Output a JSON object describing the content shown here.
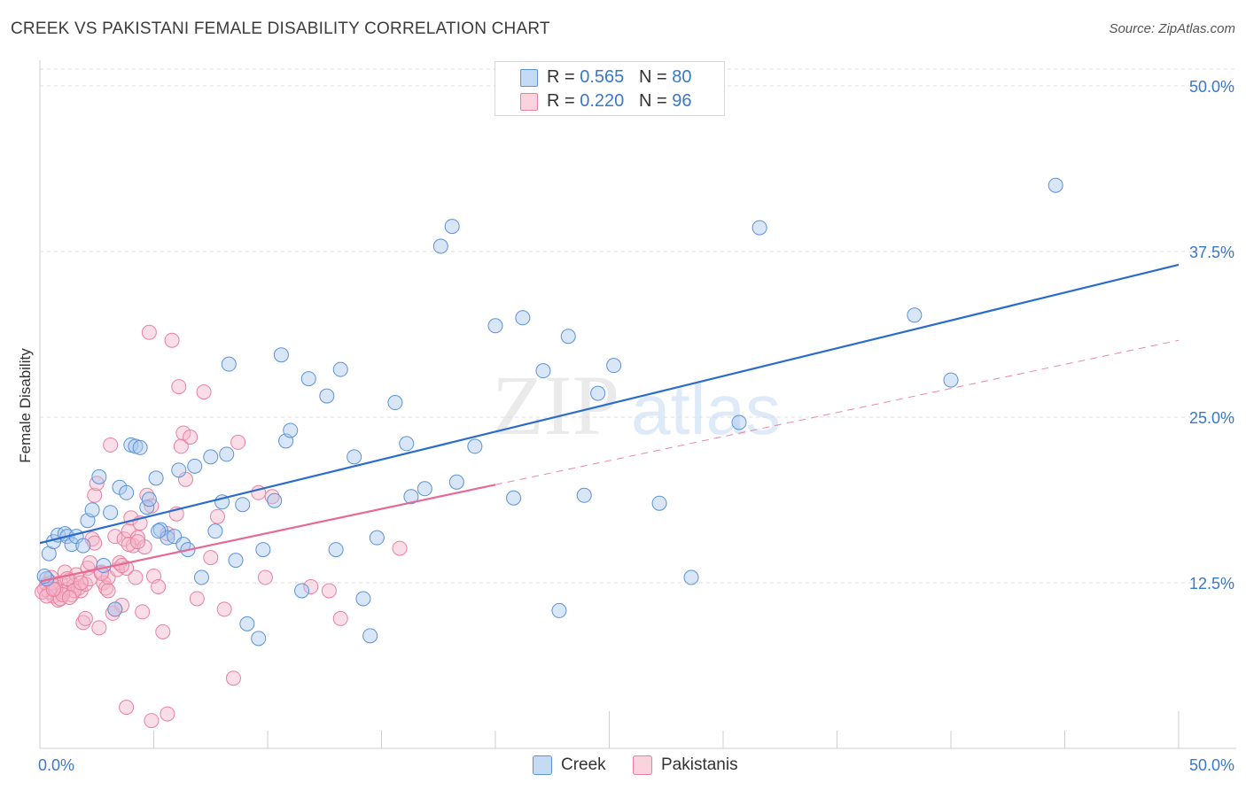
{
  "header": {
    "title": "CREEK VS PAKISTANI FEMALE DISABILITY CORRELATION CHART",
    "source": "Source: ZipAtlas.com"
  },
  "colors": {
    "creek_fill": "#a9c8ee",
    "creek_stroke": "#5b93d8",
    "creek_line": "#2a6dc9",
    "pakistani_fill": "#f5b5c9",
    "pakistani_stroke": "#ec7fa0",
    "pakistani_line": "#e66a94",
    "axis_value": "#3a78c9",
    "grid": "#dddddd"
  },
  "legend_top": [
    {
      "r_label": "R =",
      "r_value": "0.565",
      "n_label": "N =",
      "n_value": "80"
    },
    {
      "r_label": "R =",
      "r_value": "0.220",
      "n_label": "N =",
      "n_value": "96"
    }
  ],
  "watermark": {
    "zip": "ZIP",
    "atlas": "atlas"
  },
  "chart_data": {
    "type": "scatter",
    "title": "CREEK VS PAKISTANI FEMALE DISABILITY CORRELATION CHART",
    "ylabel": "Female Disability",
    "xlabel": "",
    "xlim": [
      0,
      50
    ],
    "ylim": [
      0,
      50
    ],
    "x_tick_labels": [
      "0.0%",
      "50.0%"
    ],
    "y_ticks": [
      12.5,
      25.0,
      37.5,
      50.0
    ],
    "y_tick_labels": [
      "12.5%",
      "25.0%",
      "37.5%",
      "50.0%"
    ],
    "grid": true,
    "legend_position": "bottom",
    "series": [
      {
        "name": "Creek",
        "trend": {
          "x0": 0,
          "y0": 15.5,
          "x1": 50,
          "y1": 36.5
        },
        "points": [
          [
            0.3,
            12.8
          ],
          [
            0.4,
            14.7
          ],
          [
            0.6,
            15.6
          ],
          [
            0.8,
            16.1
          ],
          [
            1.1,
            16.2
          ],
          [
            1.2,
            16.0
          ],
          [
            1.4,
            15.4
          ],
          [
            1.6,
            16.0
          ],
          [
            1.9,
            15.3
          ],
          [
            2.1,
            17.2
          ],
          [
            2.3,
            18.0
          ],
          [
            2.6,
            20.5
          ],
          [
            2.8,
            13.8
          ],
          [
            3.1,
            17.8
          ],
          [
            3.3,
            10.5
          ],
          [
            3.5,
            19.7
          ],
          [
            3.8,
            19.3
          ],
          [
            4.0,
            22.9
          ],
          [
            4.2,
            22.8
          ],
          [
            4.4,
            22.7
          ],
          [
            4.7,
            18.2
          ],
          [
            4.8,
            18.8
          ],
          [
            5.1,
            20.4
          ],
          [
            5.3,
            16.5
          ],
          [
            5.6,
            15.9
          ],
          [
            5.9,
            16.0
          ],
          [
            6.1,
            21.0
          ],
          [
            6.3,
            15.4
          ],
          [
            6.5,
            15.0
          ],
          [
            6.8,
            21.3
          ],
          [
            7.1,
            12.9
          ],
          [
            7.5,
            22.0
          ],
          [
            7.7,
            16.4
          ],
          [
            8.0,
            18.6
          ],
          [
            8.2,
            22.2
          ],
          [
            8.3,
            29.0
          ],
          [
            8.6,
            14.2
          ],
          [
            8.9,
            18.4
          ],
          [
            9.1,
            9.4
          ],
          [
            9.6,
            8.3
          ],
          [
            9.8,
            15.0
          ],
          [
            10.3,
            18.7
          ],
          [
            10.6,
            29.7
          ],
          [
            10.8,
            23.2
          ],
          [
            11.0,
            24.0
          ],
          [
            11.5,
            11.9
          ],
          [
            11.8,
            27.9
          ],
          [
            12.6,
            26.6
          ],
          [
            13.0,
            15.0
          ],
          [
            13.2,
            28.6
          ],
          [
            13.8,
            22.0
          ],
          [
            14.2,
            11.3
          ],
          [
            14.5,
            8.5
          ],
          [
            14.8,
            15.9
          ],
          [
            15.6,
            26.1
          ],
          [
            16.1,
            23.0
          ],
          [
            16.3,
            19.0
          ],
          [
            16.9,
            19.6
          ],
          [
            17.6,
            37.9
          ],
          [
            18.1,
            39.4
          ],
          [
            18.3,
            20.1
          ],
          [
            19.1,
            22.8
          ],
          [
            20.0,
            31.9
          ],
          [
            20.8,
            18.9
          ],
          [
            21.2,
            32.5
          ],
          [
            22.1,
            28.5
          ],
          [
            22.8,
            10.4
          ],
          [
            23.2,
            31.1
          ],
          [
            23.9,
            19.1
          ],
          [
            24.5,
            26.8
          ],
          [
            25.2,
            28.9
          ],
          [
            27.2,
            18.5
          ],
          [
            28.6,
            12.9
          ],
          [
            30.7,
            24.6
          ],
          [
            31.6,
            39.3
          ],
          [
            38.4,
            32.7
          ],
          [
            40.0,
            27.8
          ],
          [
            44.6,
            42.5
          ],
          [
            0.2,
            13.0
          ],
          [
            5.2,
            16.4
          ]
        ]
      },
      {
        "name": "Pakistanis",
        "trend": {
          "x0": 0,
          "y0": 12.6,
          "x1": 20,
          "y1": 19.9
        },
        "trend_extension": {
          "x0": 20,
          "y0": 19.9,
          "x1": 50,
          "y1": 30.8
        },
        "points": [
          [
            0.2,
            12.0
          ],
          [
            0.3,
            12.4
          ],
          [
            0.4,
            11.8
          ],
          [
            0.5,
            12.9
          ],
          [
            0.6,
            11.5
          ],
          [
            0.7,
            12.2
          ],
          [
            0.8,
            11.2
          ],
          [
            0.9,
            12.5
          ],
          [
            1.0,
            11.8
          ],
          [
            1.1,
            13.3
          ],
          [
            1.2,
            12.0
          ],
          [
            1.3,
            12.7
          ],
          [
            1.4,
            11.6
          ],
          [
            1.5,
            12.3
          ],
          [
            1.6,
            13.1
          ],
          [
            1.7,
            12.1
          ],
          [
            1.8,
            11.9
          ],
          [
            1.9,
            9.5
          ],
          [
            2.0,
            12.4
          ],
          [
            2.1,
            13.6
          ],
          [
            2.2,
            12.8
          ],
          [
            2.3,
            15.8
          ],
          [
            2.4,
            19.1
          ],
          [
            2.5,
            20.0
          ],
          [
            2.6,
            9.1
          ],
          [
            2.7,
            13.3
          ],
          [
            2.8,
            12.5
          ],
          [
            2.9,
            12.1
          ],
          [
            3.0,
            12.9
          ],
          [
            3.1,
            22.9
          ],
          [
            3.2,
            10.2
          ],
          [
            3.3,
            16.0
          ],
          [
            3.4,
            13.5
          ],
          [
            3.5,
            14.0
          ],
          [
            3.6,
            10.8
          ],
          [
            3.7,
            15.8
          ],
          [
            3.8,
            13.6
          ],
          [
            3.9,
            16.4
          ],
          [
            4.0,
            17.4
          ],
          [
            4.1,
            15.3
          ],
          [
            4.2,
            12.9
          ],
          [
            4.3,
            15.9
          ],
          [
            4.4,
            17.0
          ],
          [
            4.5,
            10.3
          ],
          [
            4.6,
            15.2
          ],
          [
            4.7,
            19.1
          ],
          [
            4.8,
            31.4
          ],
          [
            4.9,
            18.3
          ],
          [
            5.0,
            13.0
          ],
          [
            5.2,
            12.2
          ],
          [
            5.4,
            8.8
          ],
          [
            5.6,
            16.2
          ],
          [
            5.8,
            30.8
          ],
          [
            6.0,
            17.7
          ],
          [
            6.1,
            27.3
          ],
          [
            6.2,
            22.8
          ],
          [
            6.3,
            23.8
          ],
          [
            6.4,
            20.3
          ],
          [
            6.6,
            23.5
          ],
          [
            6.9,
            11.3
          ],
          [
            7.2,
            26.9
          ],
          [
            7.5,
            14.4
          ],
          [
            7.8,
            17.5
          ],
          [
            8.1,
            10.5
          ],
          [
            8.5,
            5.3
          ],
          [
            8.7,
            23.1
          ],
          [
            9.6,
            19.3
          ],
          [
            9.9,
            12.9
          ],
          [
            10.2,
            19.0
          ],
          [
            11.9,
            12.2
          ],
          [
            12.7,
            11.9
          ],
          [
            13.2,
            9.8
          ],
          [
            15.8,
            15.1
          ],
          [
            3.8,
            3.1
          ],
          [
            4.9,
            2.1
          ],
          [
            5.6,
            2.6
          ],
          [
            0.1,
            11.8
          ],
          [
            0.3,
            11.5
          ],
          [
            0.5,
            12.5
          ],
          [
            0.7,
            12.0
          ],
          [
            0.9,
            11.3
          ],
          [
            1.2,
            12.8
          ],
          [
            1.5,
            11.9
          ],
          [
            1.8,
            12.5
          ],
          [
            2.2,
            14.0
          ],
          [
            2.4,
            15.5
          ],
          [
            2.7,
            13.2
          ],
          [
            3.0,
            11.9
          ],
          [
            3.3,
            10.5
          ],
          [
            3.6,
            13.8
          ],
          [
            3.9,
            15.4
          ],
          [
            4.3,
            15.6
          ],
          [
            1.0,
            11.6
          ],
          [
            0.6,
            12.0
          ],
          [
            2.0,
            9.8
          ],
          [
            1.3,
            11.4
          ]
        ]
      }
    ]
  },
  "legend_bottom": [
    {
      "label": "Creek"
    },
    {
      "label": "Pakistanis"
    }
  ]
}
